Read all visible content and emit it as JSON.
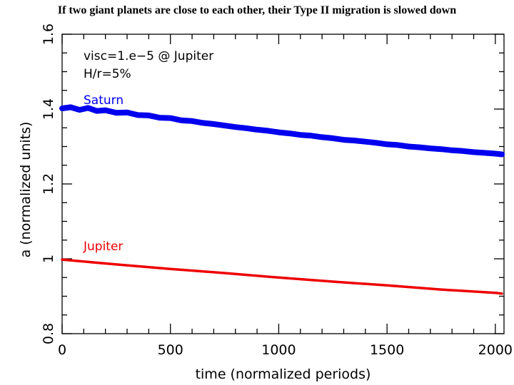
{
  "headline": "If two giant planets are close to each other, their Type II migration is slowed down",
  "chart_data": {
    "type": "line",
    "title": "If two giant planets are close to each other, their Type II migration is slowed down",
    "xlabel": "time (normalized periods)",
    "ylabel": "a (normalized units)",
    "xlim": [
      0,
      2040
    ],
    "ylim": [
      0.8,
      1.6
    ],
    "xticks": [
      0,
      500,
      1000,
      1500,
      2000
    ],
    "xtick_labels": [
      "0",
      "500",
      "1000",
      "1500",
      "2000"
    ],
    "yticks": [
      0.8,
      1.0,
      1.2,
      1.4,
      1.6
    ],
    "ytick_labels": [
      "0.8",
      "1",
      "1.2",
      "1.4",
      "1.6"
    ],
    "grid": false,
    "annotations": [
      "visc=1.e−5 @ Jupiter",
      "H/r=5%"
    ],
    "series": [
      {
        "name": "Saturn",
        "color": "#0000ee",
        "x": [
          0,
          40,
          80,
          120,
          160,
          200,
          250,
          300,
          350,
          400,
          450,
          500,
          550,
          600,
          650,
          700,
          750,
          800,
          850,
          900,
          950,
          1000,
          1050,
          1100,
          1150,
          1200,
          1250,
          1300,
          1350,
          1400,
          1450,
          1500,
          1550,
          1600,
          1650,
          1700,
          1750,
          1800,
          1850,
          1900,
          1950,
          2000,
          2030
        ],
        "y": [
          1.402,
          1.405,
          1.398,
          1.403,
          1.395,
          1.397,
          1.39,
          1.391,
          1.384,
          1.383,
          1.377,
          1.376,
          1.37,
          1.368,
          1.363,
          1.36,
          1.356,
          1.352,
          1.349,
          1.345,
          1.342,
          1.338,
          1.335,
          1.331,
          1.329,
          1.325,
          1.322,
          1.318,
          1.316,
          1.313,
          1.31,
          1.306,
          1.304,
          1.3,
          1.298,
          1.295,
          1.293,
          1.29,
          1.288,
          1.285,
          1.283,
          1.281,
          1.279
        ]
      },
      {
        "name": "Jupiter",
        "color": "#ee0000",
        "x": [
          0,
          250,
          500,
          750,
          1000,
          1250,
          1500,
          1750,
          2000,
          2030
        ],
        "y": [
          0.998,
          0.985,
          0.973,
          0.962,
          0.95,
          0.939,
          0.929,
          0.918,
          0.909,
          0.907
        ]
      }
    ]
  }
}
